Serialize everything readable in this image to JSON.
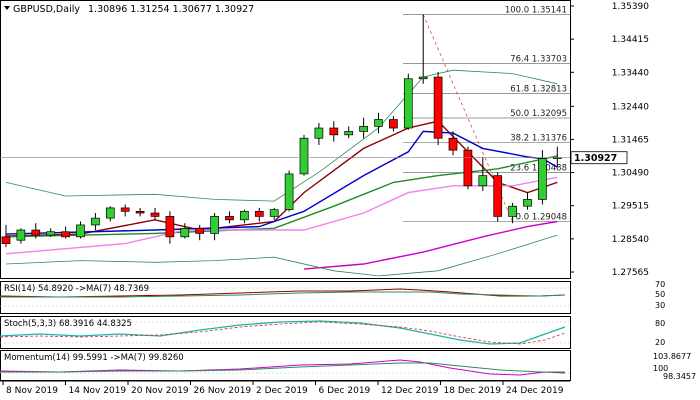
{
  "chart_data": {
    "type": "candlestick",
    "title": "GBPUSD,Daily",
    "ohlc_header": "1.30896 1.31254 1.30677 1.30927",
    "current_price": "1.30927",
    "y_ticks": [
      "1.35390",
      "1.34415",
      "1.33440",
      "1.32440",
      "1.31465",
      "1.30490",
      "1.29515",
      "1.28540",
      "1.27565"
    ],
    "x_ticks": [
      "8 Nov 2019",
      "14 Nov 2019",
      "20 Nov 2019",
      "26 Nov 2019",
      "2 Dec 2019",
      "6 Dec 2019",
      "12 Dec 2019",
      "18 Dec 2019",
      "24 Dec 2019"
    ],
    "fib_levels": [
      {
        "label": "100.0 1.35141",
        "price": 1.35141
      },
      {
        "label": "76.4 1.33703",
        "price": 1.33703
      },
      {
        "label": "61.8 1.32813",
        "price": 1.32813
      },
      {
        "label": "50.0 1.32095",
        "price": 1.32095
      },
      {
        "label": "38.2 1.31376",
        "price": 1.31376
      },
      {
        "label": "23.6 1.30488",
        "price": 1.30488
      },
      {
        "label": "0.0 1.29048",
        "price": 1.29048
      }
    ],
    "candles": [
      {
        "o": 1.286,
        "h": 1.2895,
        "l": 1.283,
        "c": 1.284
      },
      {
        "o": 1.285,
        "h": 1.2885,
        "l": 1.284,
        "c": 1.288
      },
      {
        "o": 1.288,
        "h": 1.29,
        "l": 1.2855,
        "c": 1.2865
      },
      {
        "o": 1.2865,
        "h": 1.2885,
        "l": 1.286,
        "c": 1.2875
      },
      {
        "o": 1.2875,
        "h": 1.289,
        "l": 1.2855,
        "c": 1.286
      },
      {
        "o": 1.286,
        "h": 1.2905,
        "l": 1.2855,
        "c": 1.2895
      },
      {
        "o": 1.2895,
        "h": 1.293,
        "l": 1.288,
        "c": 1.2915
      },
      {
        "o": 1.2915,
        "h": 1.295,
        "l": 1.2905,
        "c": 1.2945
      },
      {
        "o": 1.2945,
        "h": 1.2955,
        "l": 1.292,
        "c": 1.2935
      },
      {
        "o": 1.2935,
        "h": 1.2945,
        "l": 1.292,
        "c": 1.293
      },
      {
        "o": 1.293,
        "h": 1.2945,
        "l": 1.291,
        "c": 1.292
      },
      {
        "o": 1.292,
        "h": 1.2935,
        "l": 1.284,
        "c": 1.286
      },
      {
        "o": 1.286,
        "h": 1.29,
        "l": 1.2855,
        "c": 1.2885
      },
      {
        "o": 1.2885,
        "h": 1.2895,
        "l": 1.285,
        "c": 1.287
      },
      {
        "o": 1.287,
        "h": 1.293,
        "l": 1.285,
        "c": 1.292
      },
      {
        "o": 1.292,
        "h": 1.2935,
        "l": 1.29,
        "c": 1.291
      },
      {
        "o": 1.291,
        "h": 1.294,
        "l": 1.29,
        "c": 1.2935
      },
      {
        "o": 1.2935,
        "h": 1.2945,
        "l": 1.2905,
        "c": 1.292
      },
      {
        "o": 1.292,
        "h": 1.2945,
        "l": 1.291,
        "c": 1.294
      },
      {
        "o": 1.294,
        "h": 1.3055,
        "l": 1.2935,
        "c": 1.3045
      },
      {
        "o": 1.3045,
        "h": 1.316,
        "l": 1.304,
        "c": 1.315
      },
      {
        "o": 1.315,
        "h": 1.3195,
        "l": 1.313,
        "c": 1.318
      },
      {
        "o": 1.318,
        "h": 1.32,
        "l": 1.314,
        "c": 1.316
      },
      {
        "o": 1.316,
        "h": 1.3185,
        "l": 1.315,
        "c": 1.317
      },
      {
        "o": 1.317,
        "h": 1.321,
        "l": 1.315,
        "c": 1.3185
      },
      {
        "o": 1.3185,
        "h": 1.3225,
        "l": 1.3165,
        "c": 1.3205
      },
      {
        "o": 1.3205,
        "h": 1.3215,
        "l": 1.317,
        "c": 1.318
      },
      {
        "o": 1.318,
        "h": 1.334,
        "l": 1.3175,
        "c": 1.3325
      },
      {
        "o": 1.3325,
        "h": 1.3514,
        "l": 1.331,
        "c": 1.333
      },
      {
        "o": 1.333,
        "h": 1.3345,
        "l": 1.313,
        "c": 1.315
      },
      {
        "o": 1.315,
        "h": 1.317,
        "l": 1.31,
        "c": 1.3115
      },
      {
        "o": 1.3115,
        "h": 1.3125,
        "l": 1.3,
        "c": 1.301
      },
      {
        "o": 1.301,
        "h": 1.3095,
        "l": 1.2995,
        "c": 1.304
      },
      {
        "o": 1.304,
        "h": 1.305,
        "l": 1.2905,
        "c": 1.292
      },
      {
        "o": 1.292,
        "h": 1.296,
        "l": 1.29,
        "c": 1.295
      },
      {
        "o": 1.295,
        "h": 1.299,
        "l": 1.294,
        "c": 1.297
      },
      {
        "o": 1.297,
        "h": 1.3115,
        "l": 1.2955,
        "c": 1.309
      },
      {
        "o": 1.309,
        "h": 1.3125,
        "l": 1.3068,
        "c": 1.3093
      }
    ],
    "ma_lines": [
      {
        "name": "ma-dark-red",
        "color": "#8b0000",
        "points": [
          [
            0,
            1.2862
          ],
          [
            5,
            1.2868
          ],
          [
            10,
            1.291
          ],
          [
            13,
            1.288
          ],
          [
            18,
            1.2905
          ],
          [
            20,
            1.299
          ],
          [
            24,
            1.312
          ],
          [
            27,
            1.318
          ],
          [
            29,
            1.32
          ],
          [
            31,
            1.311
          ],
          [
            33,
            1.302
          ],
          [
            35,
            1.299
          ],
          [
            37,
            1.302
          ]
        ]
      },
      {
        "name": "ma-blue",
        "color": "#0000cc",
        "points": [
          [
            0,
            1.2868
          ],
          [
            10,
            1.288
          ],
          [
            17,
            1.289
          ],
          [
            20,
            1.2935
          ],
          [
            24,
            1.304
          ],
          [
            27,
            1.311
          ],
          [
            28,
            1.317
          ],
          [
            30,
            1.3165
          ],
          [
            32,
            1.312
          ],
          [
            35,
            1.3095
          ],
          [
            36,
            1.309
          ],
          [
            37,
            1.3065
          ]
        ]
      },
      {
        "name": "ma-green",
        "color": "#228b22",
        "points": [
          [
            0,
            1.286
          ],
          [
            10,
            1.287
          ],
          [
            18,
            1.2885
          ],
          [
            22,
            1.295
          ],
          [
            26,
            1.302
          ],
          [
            29,
            1.304
          ],
          [
            33,
            1.306
          ],
          [
            37,
            1.3098
          ]
        ]
      },
      {
        "name": "ma-violet",
        "color": "#ee82ee",
        "points": [
          [
            0,
            1.281
          ],
          [
            8,
            1.284
          ],
          [
            12,
            1.288
          ],
          [
            20,
            1.288
          ],
          [
            24,
            1.293
          ],
          [
            27,
            1.299
          ],
          [
            30,
            1.301
          ],
          [
            34,
            1.301
          ],
          [
            37,
            1.3035
          ]
        ]
      },
      {
        "name": "ma-magenta",
        "color": "#cc00cc",
        "points": [
          [
            20,
            1.2765
          ],
          [
            24,
            1.278
          ],
          [
            28,
            1.2815
          ],
          [
            32,
            1.286
          ],
          [
            35,
            1.289
          ],
          [
            37,
            1.2905
          ]
        ]
      },
      {
        "name": "bb-upper",
        "color": "#2e8b57",
        "points": [
          [
            0,
            1.302
          ],
          [
            4,
            1.298
          ],
          [
            10,
            1.2985
          ],
          [
            14,
            1.297
          ],
          [
            18,
            1.2965
          ],
          [
            21,
            1.305
          ],
          [
            25,
            1.318
          ],
          [
            28,
            1.333
          ],
          [
            30,
            1.335
          ],
          [
            34,
            1.334
          ],
          [
            37,
            1.331
          ]
        ]
      },
      {
        "name": "bb-lower",
        "color": "#2e8b57",
        "points": [
          [
            0,
            1.278
          ],
          [
            5,
            1.279
          ],
          [
            10,
            1.2785
          ],
          [
            14,
            1.279
          ],
          [
            18,
            1.28
          ],
          [
            22,
            1.276
          ],
          [
            25,
            1.2745
          ],
          [
            29,
            1.276
          ],
          [
            33,
            1.281
          ],
          [
            37,
            1.2865
          ]
        ]
      }
    ],
    "rsi": {
      "label": "RSI(14) 54.8920 ->MA(7) 48.7369",
      "ticks": [
        "70",
        "50",
        "30"
      ]
    },
    "stoch": {
      "label": "Stoch(5,3,3) 68.3916 44.8325",
      "ticks": [
        "80",
        "20"
      ]
    },
    "momentum": {
      "label": "Momentum(14) 99.5991 ->MA(7) 99.8260",
      "ticks": [
        "103.8677",
        "100",
        "98.3457"
      ]
    }
  }
}
